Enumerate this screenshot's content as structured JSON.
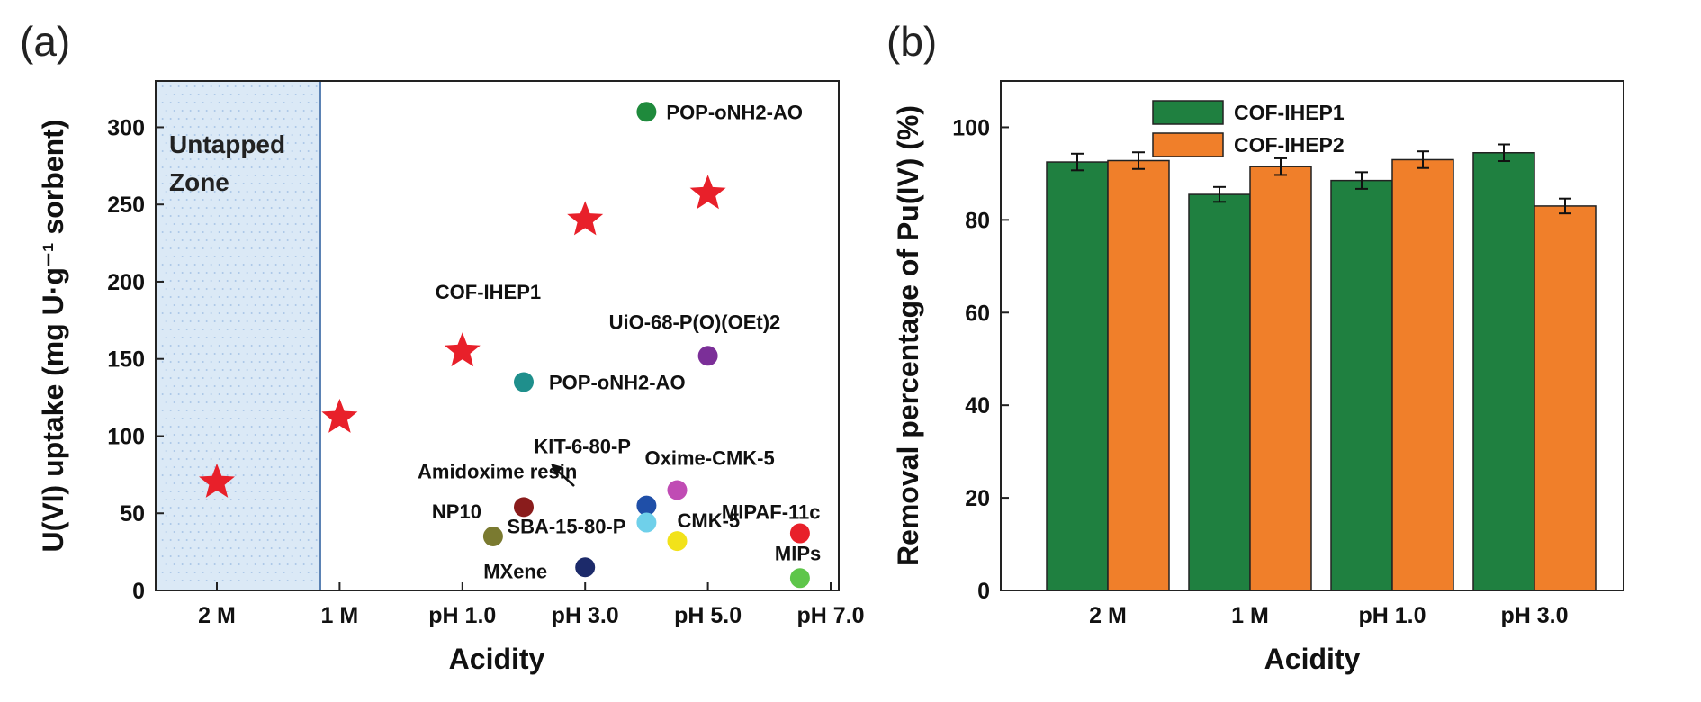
{
  "chart_data": [
    {
      "panel": "(a)",
      "type": "scatter",
      "xlabel": "Acidity",
      "ylabel": "U(VI) uptake (mg U·g⁻¹ sorbent)",
      "ylim": [
        0,
        330
      ],
      "yticks": [
        0,
        50,
        100,
        150,
        200,
        250,
        300
      ],
      "x_tick_labels": [
        "2 M",
        "1 M",
        "pH 1.0",
        "pH 3.0",
        "pH 5.0",
        "pH 7.0"
      ],
      "shaded_region": {
        "label_line1": "Untapped",
        "label_line2": "Zone",
        "color": "#dbe9f6"
      },
      "points": [
        {
          "x": "2 M",
          "y": 70,
          "marker": "star",
          "color": "#e8202a",
          "label": ""
        },
        {
          "x": "1 M",
          "y": 112,
          "marker": "star",
          "color": "#e8202a",
          "label": ""
        },
        {
          "x": "pH 1.0",
          "y": 155,
          "marker": "star",
          "color": "#e8202a",
          "label": "COF-IHEP1"
        },
        {
          "x": "pH 3.0",
          "y": 240,
          "marker": "star",
          "color": "#e8202a",
          "label": ""
        },
        {
          "x": "pH 5.0",
          "y": 257,
          "marker": "star",
          "color": "#e8202a",
          "label": ""
        },
        {
          "x": "pH 4.0",
          "y": 310,
          "marker": "circle",
          "color": "#1f8a3c",
          "label": "POP-oNH2-AO"
        },
        {
          "x": "pH 2.0",
          "y": 135,
          "marker": "circle",
          "color": "#1f8f8c",
          "label": "POP-oNH2-AO"
        },
        {
          "x": "pH 5.0",
          "y": 152,
          "marker": "circle",
          "color": "#7b2f98",
          "label": "UiO-68-P(O)(OEt)2"
        },
        {
          "x": "pH 4.0",
          "y": 55,
          "marker": "circle",
          "color": "#1f4fa8",
          "label": "KIT-6-80-P"
        },
        {
          "x": "pH 4.5",
          "y": 65,
          "marker": "circle",
          "color": "#c04cb4",
          "label": "Oxime-CMK-5"
        },
        {
          "x": "pH 2.0",
          "y": 54,
          "marker": "circle",
          "color": "#8a1c1c",
          "label": "Amidoxime resin"
        },
        {
          "x": "pH 1.5",
          "y": 35,
          "marker": "circle",
          "color": "#7a7a30",
          "label": "NP10"
        },
        {
          "x": "pH 4.0",
          "y": 44,
          "marker": "circle",
          "color": "#6fd0ea",
          "label": "SBA-15-80-P"
        },
        {
          "x": "pH 4.5",
          "y": 32,
          "marker": "circle",
          "color": "#f2e21a",
          "label": "CMK-5"
        },
        {
          "x": "pH 6.5",
          "y": 37,
          "marker": "circle",
          "color": "#e8202a",
          "label": "MIPAF-11c"
        },
        {
          "x": "pH 3.0",
          "y": 15,
          "marker": "circle",
          "color": "#1c2a6a",
          "label": "MXene"
        },
        {
          "x": "pH 6.5",
          "y": 8,
          "marker": "circle",
          "color": "#5ec64a",
          "label": "MIPs"
        }
      ]
    },
    {
      "panel": "(b)",
      "type": "bar",
      "xlabel": "Acidity",
      "ylabel": "Removal percentage of Pu(IV) (%)",
      "ylim": [
        0,
        110
      ],
      "yticks": [
        0,
        20,
        40,
        60,
        80,
        100
      ],
      "categories": [
        "2 M",
        "1 M",
        "pH 1.0",
        "pH 3.0"
      ],
      "legend_position": "top-left",
      "series": [
        {
          "name": "COF-IHEP1",
          "color": "#1f8040",
          "values": [
            92.5,
            85.5,
            88.5,
            94.5
          ],
          "errors": [
            1.8,
            1.6,
            1.8,
            1.8
          ]
        },
        {
          "name": "COF-IHEP2",
          "color": "#f07f2a",
          "values": [
            92.8,
            91.5,
            93.0,
            83.0
          ],
          "errors": [
            1.8,
            1.8,
            1.8,
            1.6
          ]
        }
      ]
    }
  ]
}
